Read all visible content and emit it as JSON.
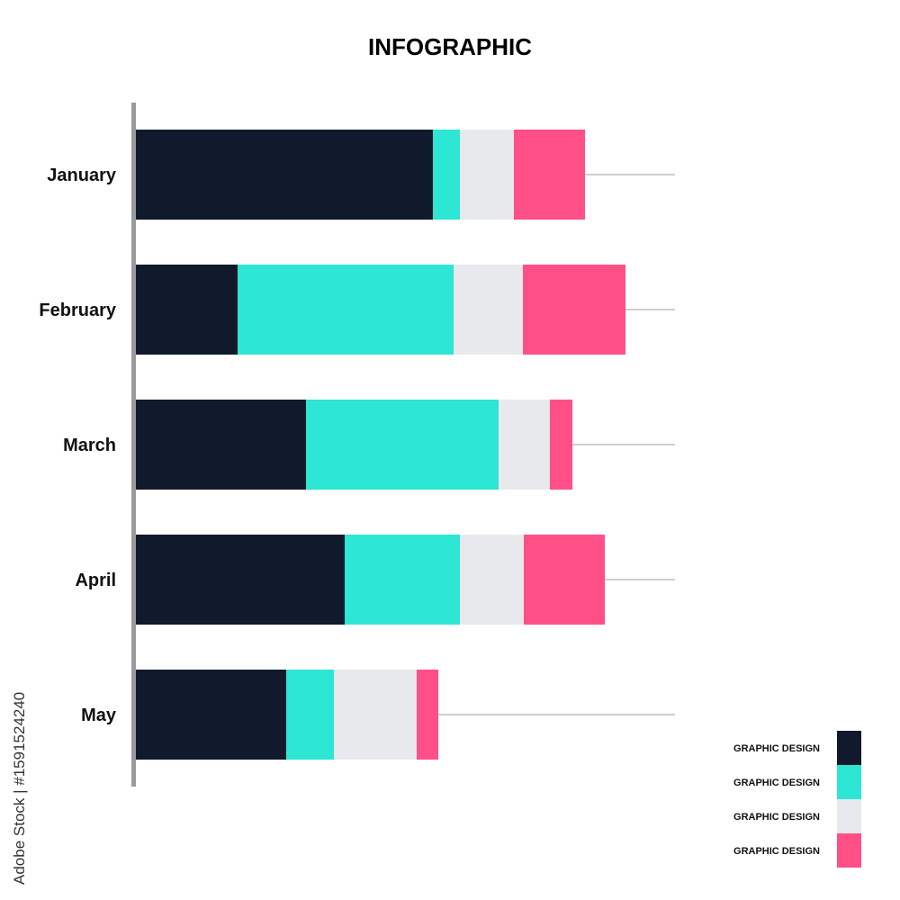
{
  "chart_data": {
    "type": "bar",
    "orientation": "horizontal",
    "stacked": true,
    "title": "INFOGRAPHIC",
    "categories": [
      "January",
      "February",
      "March",
      "April",
      "May"
    ],
    "series": [
      {
        "name": "GRAPHIC DESIGN",
        "color": "#111a2c",
        "values": [
          330,
          113,
          189,
          232,
          167
        ]
      },
      {
        "name": "GRAPHIC DESIGN",
        "color": "#2de6d3",
        "values": [
          30,
          240,
          214,
          128,
          53
        ]
      },
      {
        "name": "GRAPHIC DESIGN",
        "color": "#e8e9ec",
        "values": [
          60,
          77,
          57,
          71,
          92
        ]
      },
      {
        "name": "GRAPHIC DESIGN",
        "color": "#ff4f87",
        "values": [
          79,
          114,
          25,
          90,
          24
        ]
      }
    ],
    "grid": false,
    "legend_position": "bottom-right"
  },
  "watermark": "Adobe Stock | #1591524240",
  "colors": {
    "axis": "#9b9b9b",
    "leader_line": "#bdbdbd"
  }
}
